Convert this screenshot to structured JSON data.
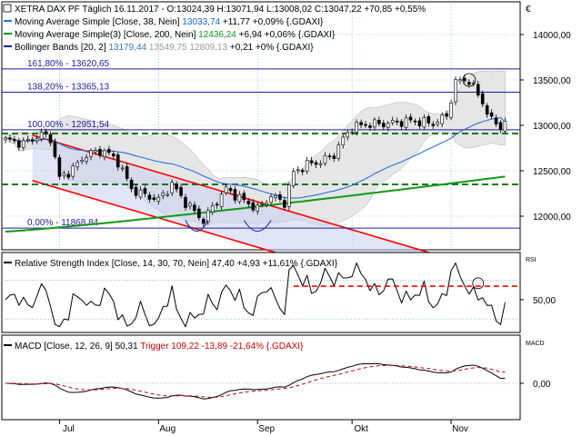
{
  "chart_data": [
    {
      "type": "line",
      "panel": "price",
      "lines": [
        {
          "parts": [
            {
              "text": "XETRA DAX PF Täglich  16.11.2017 - O:13024,39 H:13071,94 L:13008,02 C:13047,22 +70,85 +0,55%",
              "color": "#000000"
            }
          ]
        },
        {
          "parts": [
            {
              "text": "Moving Average Simple [Close, 38, Nein]",
              "color": "#000000"
            },
            {
              "text": " 13033,74",
              "color": "#1a5fd1"
            },
            {
              "text": " +11,77 +0,09% {.GDAXI}",
              "color": "#000000"
            }
          ]
        },
        {
          "parts": [
            {
              "text": "Moving Average Simple(3) [Close, 200, Nein]",
              "color": "#000000"
            },
            {
              "text": " 12436,24",
              "color": "#119911"
            },
            {
              "text": " +6,94 +0,06% {.GDAXI}",
              "color": "#000000"
            }
          ]
        },
        {
          "parts": [
            {
              "text": "Bollinger Bands [20, 2]",
              "color": "#000000"
            },
            {
              "text": " 13179,44",
              "color": "#3377cc"
            },
            {
              "text": " 13549,75 12809,13",
              "color": "#999999"
            },
            {
              "text": " +0,21 +0% {.GDAXI}",
              "color": "#000000"
            }
          ]
        }
      ],
      "yticks": [
        "14000,00",
        "13500,00",
        "13000,00",
        "12500,00",
        "12000,00"
      ],
      "ytick_values": [
        14000,
        13500,
        13000,
        12500,
        12000
      ],
      "ylim": [
        11700,
        14300
      ],
      "fib_levels": [
        {
          "label": "161,80% - 13620,65",
          "value": 13620.65
        },
        {
          "label": "138,20% - 13365,13",
          "value": 13365.13
        },
        {
          "label": "100,00% - 12951,54",
          "value": 12951.54
        },
        {
          "label": "0,00% - 11868,84",
          "value": 11868.84
        }
      ],
      "support_levels": [
        12910,
        12350
      ],
      "ma38_value": 13033.74,
      "ma200_value": 12436.24,
      "close": 13047.22
    },
    {
      "type": "line",
      "panel": "rsi",
      "legend": [
        {
          "text": "Relative Strength Index [Close, 14, 30, 70, Nein] 47,40 +4,93 +11,61% {.GDAXI}",
          "color": "#000000"
        }
      ],
      "ylabel": "RSI",
      "yticks": [
        "50,00"
      ],
      "ytick_values": [
        50
      ],
      "ylim": [
        18,
        95
      ],
      "bands": [
        70,
        30
      ],
      "resistance": 64,
      "last": 47.4
    },
    {
      "type": "line",
      "panel": "macd",
      "legend": [
        {
          "text": "MACD [Close, 12, 26, 9] 50,31",
          "color": "#000000"
        },
        {
          "text": " Trigger 109,22 -13,89 -21,64% {.GDAXI}",
          "color": "#cc0000"
        }
      ],
      "ylabel": "MACD",
      "yticks": [
        "0,00"
      ],
      "ytick_values": [
        0
      ],
      "ylim": [
        -330,
        330
      ],
      "macd_last": 50.31,
      "trigger_last": 109.22
    }
  ],
  "x_axis": {
    "months": [
      "Jul",
      "Aug",
      "Sep",
      "Okt",
      "Nov"
    ],
    "month_start_index": [
      12,
      34,
      56,
      77,
      99
    ],
    "num_bars": 112
  },
  "corner_label": "€",
  "colors": {
    "bollinger_fill": "#e6e6e6",
    "channel_fill": "#c8cff0",
    "ma38": "#2a6fdb",
    "ma200": "#119911",
    "channel": "#ff0000",
    "fib": "#1c1c9c",
    "support": "#006600",
    "rsi_resistance": "#ff0000",
    "trigger": "#cc0000",
    "grid": "#6fa8c8"
  }
}
